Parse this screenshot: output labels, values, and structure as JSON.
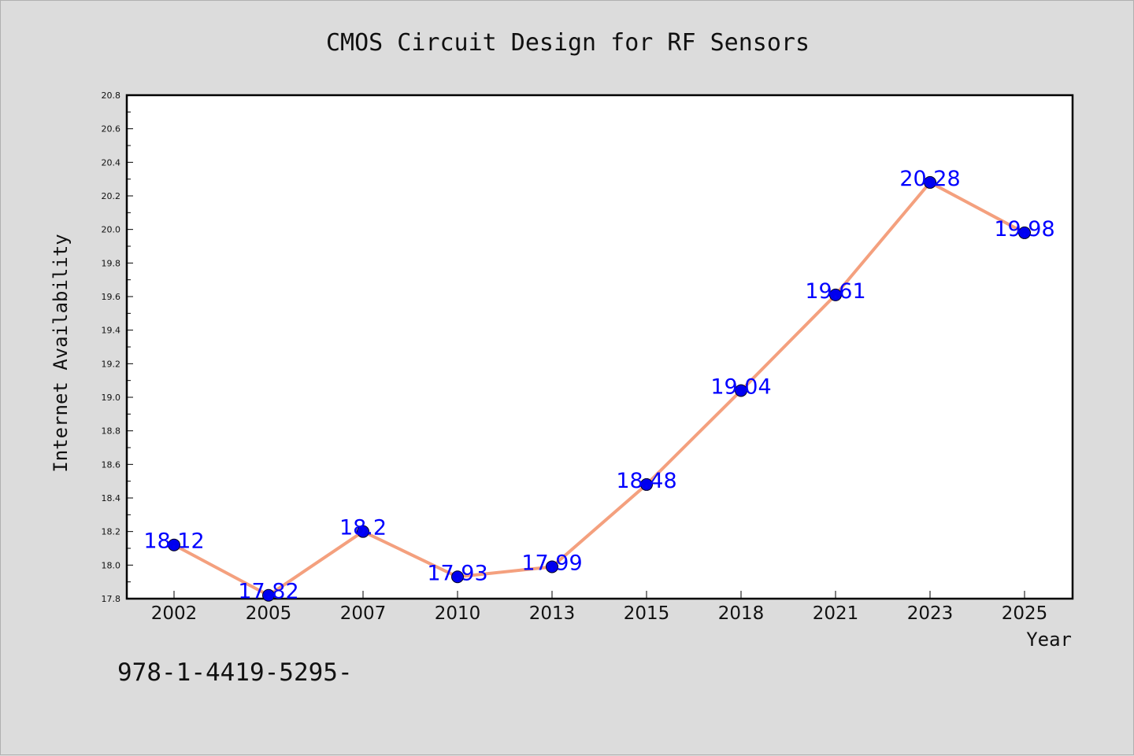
{
  "chart_data": {
    "type": "line",
    "title": "CMOS Circuit Design for RF Sensors",
    "xlabel": "Year",
    "ylabel": "Internet Availability",
    "categories": [
      "2002",
      "2005",
      "2007",
      "2010",
      "2013",
      "2015",
      "2018",
      "2021",
      "2023",
      "2025"
    ],
    "values": [
      18.12,
      17.82,
      18.2,
      17.93,
      17.99,
      18.48,
      19.04,
      19.61,
      20.28,
      19.98
    ],
    "data_labels": [
      "18.12",
      "17.82",
      "18.2",
      "17.93",
      "17.99",
      "18.48",
      "19.04",
      "19.61",
      "20.28",
      "19.98"
    ],
    "ylim": [
      17.8,
      20.8
    ],
    "yticks": [
      "17.8",
      "18.0",
      "18.2",
      "18.4",
      "18.6",
      "18.8",
      "19.0",
      "19.2",
      "19.4",
      "19.6",
      "19.8",
      "20.0",
      "20.2",
      "20.4",
      "20.6",
      "20.8"
    ],
    "grid": false,
    "line_color": "#f4a07e",
    "marker_color": "#0000ee",
    "label_color": "#0000ff"
  },
  "footer": {
    "text": "978-1-4419-5295-"
  }
}
